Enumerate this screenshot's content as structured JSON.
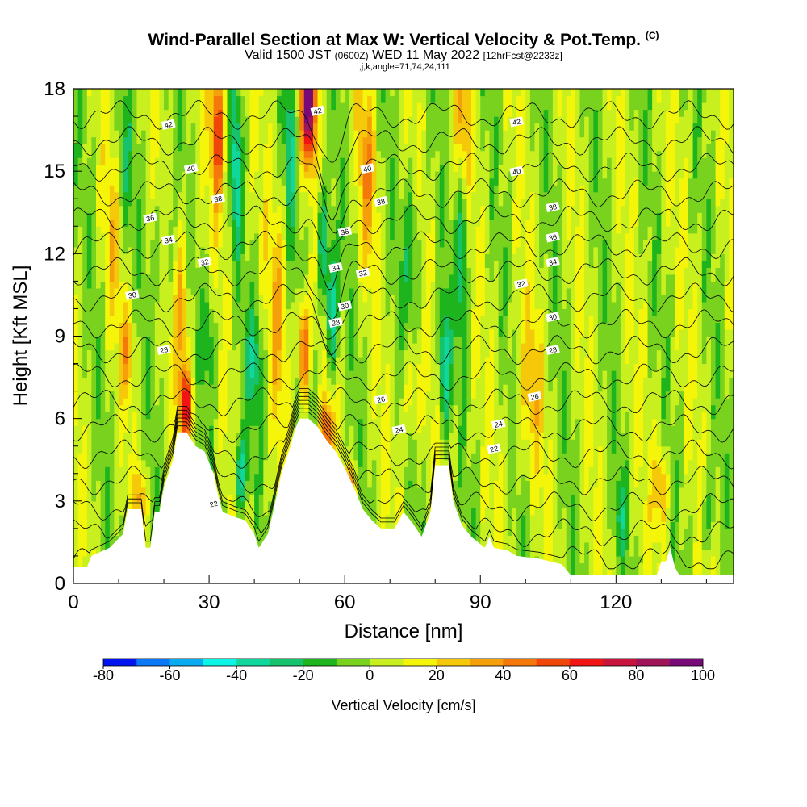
{
  "header": {
    "title_main": "Wind-Parallel Section at Max W: Vertical Velocity & Pot.Temp.",
    "title_tag": "(C)",
    "valid_pre": "Valid 1500 JST",
    "valid_z": "(0600Z)",
    "valid_date": "WED 11 May 2022",
    "valid_fcst": "[12hrFcst@2233z]",
    "indices": "i,j,k,angle=71,74,24,111"
  },
  "chart_data": {
    "type": "heatmap",
    "title": "Wind-Parallel Section at Max W: Vertical Velocity & Pot.Temp.",
    "xlabel": "Distance [nm]",
    "ylabel": "Height [Kft MSL]",
    "xlim": [
      0,
      146
    ],
    "ylim": [
      0,
      18
    ],
    "x_ticks": [
      0,
      30,
      60,
      90,
      120
    ],
    "y_ticks": [
      0,
      3,
      6,
      9,
      12,
      15,
      18
    ],
    "grid": false,
    "colorbar": {
      "label": "Vertical Velocity [cm/s]",
      "tick_labels": [
        "-80",
        "-60",
        "-40",
        "-20",
        "0",
        "20",
        "40",
        "60",
        "80",
        "100"
      ],
      "min": -80,
      "max": 100,
      "step": 10,
      "colors": [
        "#0014f0",
        "#0a78f5",
        "#0aaaf0",
        "#0af5e6",
        "#10d79c",
        "#16c36c",
        "#1eb41e",
        "#78d21e",
        "#c8f01e",
        "#f5f50a",
        "#f5c80a",
        "#f5a00a",
        "#f5780a",
        "#f0460a",
        "#f01414",
        "#c8143c",
        "#a0145a",
        "#780a78"
      ]
    },
    "terrain": [
      {
        "x": 0,
        "h": 0.6
      },
      {
        "x": 3,
        "h": 0.6
      },
      {
        "x": 4,
        "h": 1.0
      },
      {
        "x": 8,
        "h": 1.3
      },
      {
        "x": 11,
        "h": 1.8
      },
      {
        "x": 12,
        "h": 2.7
      },
      {
        "x": 15,
        "h": 2.7
      },
      {
        "x": 16,
        "h": 1.3
      },
      {
        "x": 17,
        "h": 1.3
      },
      {
        "x": 18,
        "h": 2.6
      },
      {
        "x": 19,
        "h": 2.6
      },
      {
        "x": 20,
        "h": 3.5
      },
      {
        "x": 21,
        "h": 4.0
      },
      {
        "x": 22,
        "h": 4.5
      },
      {
        "x": 23,
        "h": 5.5
      },
      {
        "x": 25,
        "h": 5.5
      },
      {
        "x": 27,
        "h": 5.0
      },
      {
        "x": 29,
        "h": 4.8
      },
      {
        "x": 31,
        "h": 4.0
      },
      {
        "x": 32,
        "h": 3.2
      },
      {
        "x": 33,
        "h": 2.6
      },
      {
        "x": 36,
        "h": 2.4
      },
      {
        "x": 38,
        "h": 2.3
      },
      {
        "x": 40,
        "h": 1.8
      },
      {
        "x": 41,
        "h": 1.3
      },
      {
        "x": 43,
        "h": 1.8
      },
      {
        "x": 44,
        "h": 2.5
      },
      {
        "x": 46,
        "h": 4.0
      },
      {
        "x": 48,
        "h": 5.0
      },
      {
        "x": 49,
        "h": 5.6
      },
      {
        "x": 50,
        "h": 6.0
      },
      {
        "x": 52,
        "h": 6.0
      },
      {
        "x": 54,
        "h": 5.7
      },
      {
        "x": 56,
        "h": 5.2
      },
      {
        "x": 58,
        "h": 4.8
      },
      {
        "x": 60,
        "h": 4.2
      },
      {
        "x": 62,
        "h": 3.5
      },
      {
        "x": 64,
        "h": 2.7
      },
      {
        "x": 66,
        "h": 2.3
      },
      {
        "x": 68,
        "h": 2.0
      },
      {
        "x": 71,
        "h": 2.0
      },
      {
        "x": 73,
        "h": 2.6
      },
      {
        "x": 75,
        "h": 2.2
      },
      {
        "x": 77,
        "h": 1.7
      },
      {
        "x": 79,
        "h": 2.6
      },
      {
        "x": 80,
        "h": 4.3
      },
      {
        "x": 83,
        "h": 4.3
      },
      {
        "x": 84,
        "h": 3.0
      },
      {
        "x": 86,
        "h": 2.1
      },
      {
        "x": 88,
        "h": 1.7
      },
      {
        "x": 91,
        "h": 1.3
      },
      {
        "x": 92,
        "h": 1.7
      },
      {
        "x": 93,
        "h": 1.3
      },
      {
        "x": 96,
        "h": 1.2
      },
      {
        "x": 98,
        "h": 1.0
      },
      {
        "x": 103,
        "h": 0.9
      },
      {
        "x": 108,
        "h": 0.7
      },
      {
        "x": 110,
        "h": 0.3
      },
      {
        "x": 129,
        "h": 0.3
      },
      {
        "x": 130,
        "h": 0.8
      },
      {
        "x": 131,
        "h": 0.8
      },
      {
        "x": 132,
        "h": 1.3
      },
      {
        "x": 133,
        "h": 0.6
      },
      {
        "x": 134,
        "h": 0.3
      },
      {
        "x": 146,
        "h": 0.3
      }
    ],
    "pot_temp_contours": {
      "levels": [
        22,
        24,
        26,
        28,
        30,
        32,
        34,
        36,
        38,
        40,
        42
      ],
      "labels": [
        {
          "x": 31,
          "y": 2.9,
          "text": "22"
        },
        {
          "x": 93,
          "y": 4.9,
          "text": "22"
        },
        {
          "x": 72,
          "y": 5.6,
          "text": "24"
        },
        {
          "x": 94,
          "y": 5.8,
          "text": "24"
        },
        {
          "x": 68,
          "y": 6.7,
          "text": "26"
        },
        {
          "x": 102,
          "y": 6.8,
          "text": "26"
        },
        {
          "x": 20,
          "y": 8.5,
          "text": "28"
        },
        {
          "x": 58,
          "y": 9.5,
          "text": "28"
        },
        {
          "x": 106,
          "y": 8.5,
          "text": "28"
        },
        {
          "x": 13,
          "y": 10.5,
          "text": "30"
        },
        {
          "x": 60,
          "y": 10.1,
          "text": "30"
        },
        {
          "x": 106,
          "y": 9.7,
          "text": "30"
        },
        {
          "x": 29,
          "y": 11.7,
          "text": "32"
        },
        {
          "x": 64,
          "y": 11.3,
          "text": "32"
        },
        {
          "x": 99,
          "y": 10.9,
          "text": "32"
        },
        {
          "x": 21,
          "y": 12.5,
          "text": "34"
        },
        {
          "x": 58,
          "y": 11.5,
          "text": "34"
        },
        {
          "x": 106,
          "y": 11.7,
          "text": "34"
        },
        {
          "x": 17,
          "y": 13.3,
          "text": "36"
        },
        {
          "x": 60,
          "y": 12.8,
          "text": "36"
        },
        {
          "x": 106,
          "y": 12.6,
          "text": "36"
        },
        {
          "x": 32,
          "y": 14.0,
          "text": "38"
        },
        {
          "x": 68,
          "y": 13.9,
          "text": "38"
        },
        {
          "x": 106,
          "y": 13.7,
          "text": "38"
        },
        {
          "x": 26,
          "y": 15.1,
          "text": "40"
        },
        {
          "x": 65,
          "y": 15.1,
          "text": "40"
        },
        {
          "x": 98,
          "y": 15.0,
          "text": "40"
        },
        {
          "x": 21,
          "y": 16.7,
          "text": "42"
        },
        {
          "x": 54,
          "y": 17.2,
          "text": "42"
        },
        {
          "x": 98,
          "y": 16.8,
          "text": "42"
        }
      ]
    }
  }
}
